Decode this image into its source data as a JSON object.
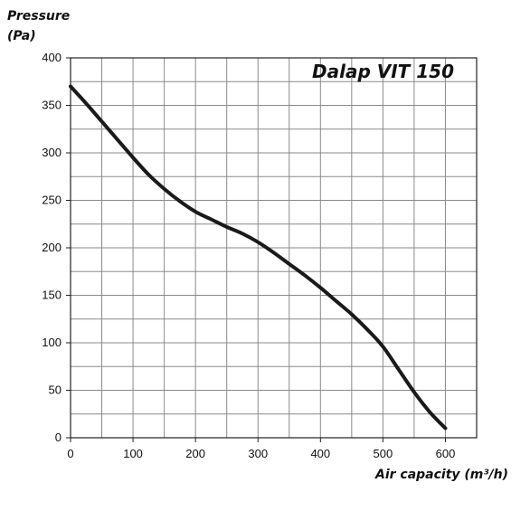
{
  "chart_data": {
    "type": "line",
    "title": "Dalap VIT 150",
    "ylabel_lines": [
      "Pressure",
      "(Pa)"
    ],
    "xlabel": "Air capacity (m³/h)",
    "xlim": [
      0,
      650
    ],
    "ylim": [
      0,
      400
    ],
    "xticks": [
      0,
      100,
      200,
      300,
      400,
      500,
      600
    ],
    "yticks": [
      0,
      50,
      100,
      150,
      200,
      250,
      300,
      350,
      400
    ],
    "x_minor_step": 50,
    "y_minor_step": 25,
    "grid": true,
    "series": [
      {
        "color": "#1a1a1a",
        "points": [
          [
            0,
            370
          ],
          [
            25,
            352
          ],
          [
            50,
            333
          ],
          [
            75,
            314
          ],
          [
            100,
            295
          ],
          [
            125,
            277
          ],
          [
            150,
            262
          ],
          [
            175,
            249
          ],
          [
            200,
            238
          ],
          [
            225,
            230
          ],
          [
            250,
            222
          ],
          [
            275,
            215
          ],
          [
            300,
            206
          ],
          [
            325,
            195
          ],
          [
            350,
            183
          ],
          [
            375,
            171
          ],
          [
            400,
            158
          ],
          [
            425,
            144
          ],
          [
            450,
            130
          ],
          [
            475,
            114
          ],
          [
            500,
            96
          ],
          [
            525,
            72
          ],
          [
            550,
            48
          ],
          [
            575,
            27
          ],
          [
            600,
            10
          ]
        ]
      }
    ]
  }
}
